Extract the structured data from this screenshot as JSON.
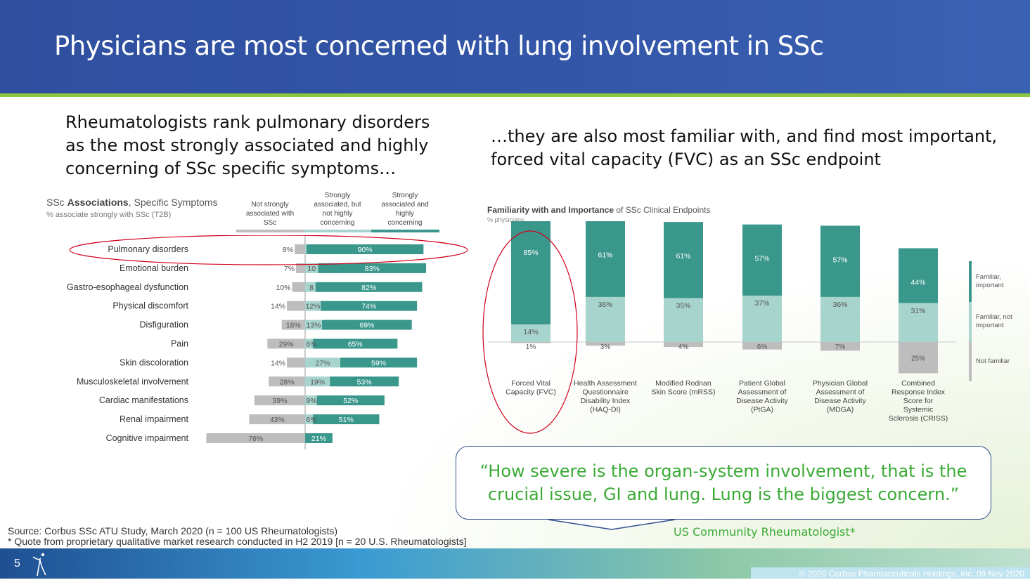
{
  "title": "Physicians are most concerned with lung involvement in SSc",
  "left_headline": [
    "Rheumatologists rank pulmonary disorders",
    "as the most strongly associated and highly",
    "concerning of SSc specific symptoms…"
  ],
  "right_headline": [
    "…they are also most familiar with, and find most important,",
    "forced vital capacity (FVC) as an SSc endpoint"
  ],
  "left_chart": {
    "title_prefix": "SSc ",
    "title_bold": "Associations",
    "title_suffix": ", Specific Symptoms",
    "subtitle": "% associate strongly with SSc (T2B)",
    "col_headers": [
      [
        "Not strongly",
        "associated with",
        "SSc"
      ],
      [
        "Strongly",
        "associated, but",
        "not highly",
        "concerning"
      ],
      [
        "Strongly",
        "associated and",
        "highly",
        "concerning"
      ]
    ]
  },
  "right_chart": {
    "title_bold": "Familiarity with and Importance",
    "title_suffix": " of SSc Clinical Endpoints",
    "subtitle": "% physicians"
  },
  "chart_data": [
    {
      "type": "bar",
      "orientation": "horizontal",
      "stacked": "diverging",
      "categories": [
        "Pulmonary disorders",
        "Emotional burden",
        "Gastro-esophageal dysfunction",
        "Physical discomfort",
        "Disfiguration",
        "Pain",
        "Skin discoloration",
        "Musculoskeletal involvement",
        "Cardiac manifestations",
        "Renal impairment",
        "Cognitive impairment"
      ],
      "series": [
        {
          "name": "Not strongly associated with SSc",
          "values": [
            8,
            7,
            10,
            14,
            18,
            29,
            14,
            28,
            39,
            43,
            76
          ],
          "labels": [
            "8%",
            "7%",
            "10%",
            "14%",
            "18%",
            "29%",
            "14%",
            "28%",
            "39%",
            "43%",
            "76%"
          ],
          "color": "#bdbdbd"
        },
        {
          "name": "Strongly associated, but not highly concerning",
          "values": [
            1,
            10,
            8,
            12,
            13,
            6,
            27,
            19,
            9,
            6,
            0
          ],
          "labels": [
            "",
            "10",
            "8",
            "12%",
            "13%",
            "6%",
            "27%",
            "19%",
            "9%",
            "6%",
            ""
          ],
          "color": "#a8d4ce"
        },
        {
          "name": "Strongly associated and highly concerning",
          "values": [
            90,
            83,
            82,
            74,
            69,
            65,
            59,
            53,
            52,
            51,
            21
          ],
          "labels": [
            "90%",
            "83%",
            "82%",
            "74%",
            "69%",
            "65%",
            "59%",
            "53%",
            "52%",
            "51%",
            "21%"
          ],
          "color": "#3a978c"
        }
      ],
      "highlight": "Pulmonary disorders"
    },
    {
      "type": "bar",
      "stacked": "diverging",
      "categories": [
        [
          "Forced Vital",
          "Capacity (FVC)"
        ],
        [
          "Health Assessment",
          "Questionnaire",
          "Disability Index",
          "(HAQ-DI)"
        ],
        [
          "Modified Rodnan",
          "Skin Score (mRSS)"
        ],
        [
          "Patient Global",
          "Assessment of",
          "Disease Activity",
          "(PtGA)"
        ],
        [
          "Physician Global",
          "Assessment of",
          "Disease Activity",
          "(MDGA)"
        ],
        [
          "Combined",
          "Response Index",
          "Score for",
          "Systemic",
          "Sclerosis (CRISS)"
        ]
      ],
      "series": [
        {
          "name": "Familiar, important",
          "legend": [
            "Familiar,",
            "important"
          ],
          "values": [
            85,
            61,
            61,
            57,
            57,
            44
          ],
          "labels": [
            "85%",
            "61%",
            "61%",
            "57%",
            "57%",
            "44%"
          ],
          "color": "#3a978c"
        },
        {
          "name": "Familiar, not important",
          "legend": [
            "Familiar, not",
            "important"
          ],
          "values": [
            14,
            36,
            35,
            37,
            36,
            31
          ],
          "labels": [
            "14%",
            "36%",
            "35%",
            "37%",
            "36%",
            "31%"
          ],
          "color": "#a8d4ce"
        },
        {
          "name": "Not familiar",
          "legend": [
            "Not familiar"
          ],
          "values": [
            1,
            3,
            4,
            6,
            7,
            25
          ],
          "labels": [
            "1%",
            "3%",
            "4%",
            "6%",
            "7%",
            "25%"
          ],
          "color": "#bdbdbd"
        }
      ],
      "highlight": "Forced Vital Capacity (FVC)"
    }
  ],
  "quote": {
    "lines": [
      "“How severe is the organ-system involvement, that is the",
      "crucial issue, GI and lung. Lung is the biggest concern.”"
    ],
    "attribution": "US Community Rheumatologist*"
  },
  "source": {
    "line1": "Source: Corbus SSc ATU Study, March 2020 (n = 100 US Rheumatologists)",
    "line2": "* Quote from proprietary qualitative market research conducted in H2 2019 [n = 20 U.S. Rheumatologists]"
  },
  "footer": {
    "page_number": "5",
    "copyright": "© 2020 Corbus Pharmaceuticals Holdings, Inc. 09 Nov 2020",
    "logo_icon": "corbus-figure-icon"
  },
  "colors": {
    "header_blue": "#3356a8",
    "accent_green": "#8cc63f",
    "quote_green": "#3aaa35",
    "highlight_red": "#d0021b"
  }
}
